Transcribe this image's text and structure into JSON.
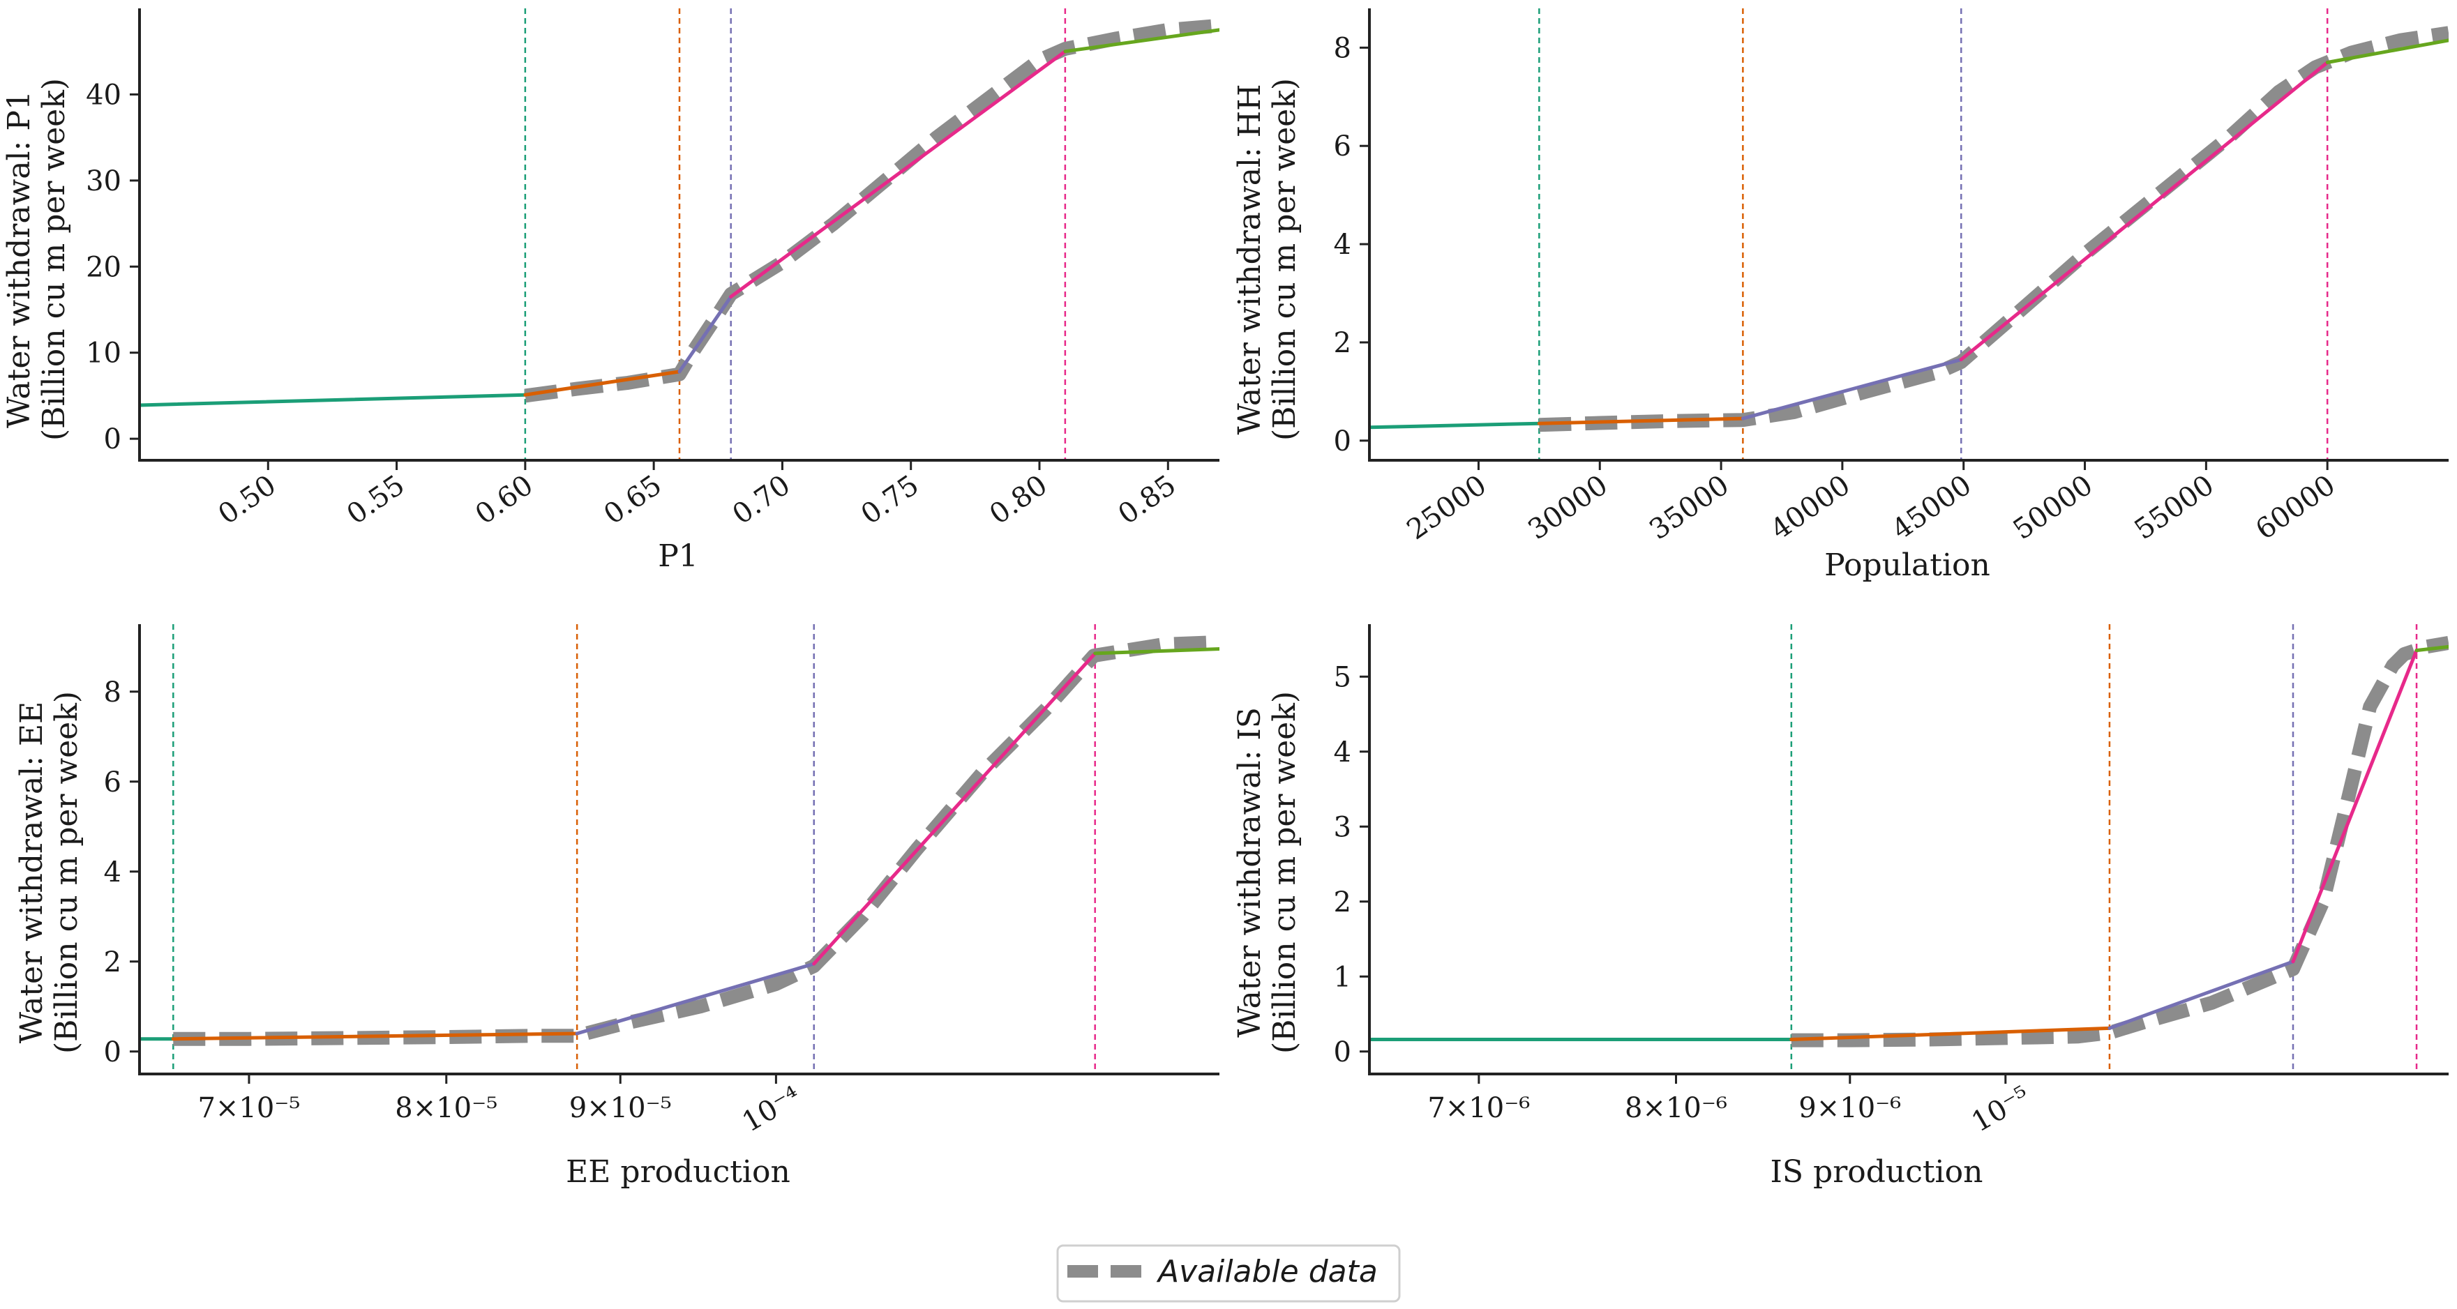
{
  "legend": {
    "label": "Available data",
    "placement": "bottom-center"
  },
  "colors": {
    "segment_1": "#1b9e77",
    "segment_2": "#d95f02",
    "segment_3": "#7570b3",
    "segment_4": "#e7298a",
    "segment_5": "#66a61e",
    "available_data": "#8c8c8c"
  },
  "chart_data": [
    {
      "id": "p1",
      "type": "line",
      "xscale": "linear",
      "xlabel": "P1",
      "ylabel_lines": [
        "Water withdrawal: P1",
        "(Billion cu m per week)"
      ],
      "xlim": [
        0.45,
        0.87
      ],
      "ylim": [
        -2.5,
        50
      ],
      "xticks": [
        0.5,
        0.55,
        0.6,
        0.65,
        0.7,
        0.75,
        0.8,
        0.85
      ],
      "xtick_labels": [
        "0.50",
        "0.55",
        "0.60",
        "0.65",
        "0.70",
        "0.75",
        "0.80",
        "0.85"
      ],
      "yticks": [
        0,
        10,
        20,
        30,
        40
      ],
      "ytick_labels": [
        "0",
        "10",
        "20",
        "30",
        "40"
      ],
      "rotate_xticks": true,
      "thresholds": [
        0.6,
        0.66,
        0.68,
        0.81
      ],
      "segments": [
        {
          "x": [
            0.45,
            0.6
          ],
          "y": [
            3.9,
            5.1
          ]
        },
        {
          "x": [
            0.6,
            0.66
          ],
          "y": [
            5.1,
            7.8
          ]
        },
        {
          "x": [
            0.66,
            0.68
          ],
          "y": [
            7.8,
            16.5
          ]
        },
        {
          "x": [
            0.68,
            0.81
          ],
          "y": [
            16.5,
            45.0
          ]
        },
        {
          "x": [
            0.81,
            0.87
          ],
          "y": [
            45.0,
            47.5
          ]
        }
      ],
      "available_data": {
        "x": [
          0.6,
          0.62,
          0.64,
          0.66,
          0.665,
          0.675,
          0.68,
          0.7,
          0.72,
          0.74,
          0.76,
          0.78,
          0.8,
          0.81,
          0.83,
          0.85,
          0.87
        ],
        "y": [
          5.0,
          5.8,
          6.5,
          7.5,
          10.0,
          14.5,
          16.8,
          20.5,
          25.0,
          30.0,
          35.0,
          39.5,
          44.0,
          45.3,
          46.5,
          47.5,
          48.0
        ]
      }
    },
    {
      "id": "hh",
      "type": "line",
      "xscale": "linear",
      "xlabel": "Population",
      "ylabel_lines": [
        "Water withdrawal: HH",
        "(Billion cu m per week)"
      ],
      "xlim": [
        20500,
        65000
      ],
      "ylim": [
        -0.4,
        8.8
      ],
      "xticks": [
        25000,
        30000,
        35000,
        40000,
        45000,
        50000,
        55000,
        60000
      ],
      "xtick_labels": [
        "25000",
        "30000",
        "35000",
        "40000",
        "45000",
        "50000",
        "55000",
        "60000"
      ],
      "yticks": [
        0,
        2,
        4,
        6,
        8
      ],
      "ytick_labels": [
        "0",
        "2",
        "4",
        "6",
        "8"
      ],
      "rotate_xticks": true,
      "thresholds": [
        27500,
        35900,
        44900,
        60000
      ],
      "segments": [
        {
          "x": [
            20500,
            27500
          ],
          "y": [
            0.27,
            0.35
          ]
        },
        {
          "x": [
            27500,
            35900
          ],
          "y": [
            0.35,
            0.45
          ]
        },
        {
          "x": [
            35900,
            44900
          ],
          "y": [
            0.45,
            1.65
          ]
        },
        {
          "x": [
            44900,
            60000
          ],
          "y": [
            1.65,
            7.7
          ]
        },
        {
          "x": [
            60000,
            65000
          ],
          "y": [
            7.7,
            8.15
          ]
        }
      ],
      "available_data": {
        "x": [
          27500,
          30000,
          33000,
          35900,
          38000,
          41000,
          44000,
          44900,
          47000,
          50000,
          53000,
          56000,
          58000,
          59500,
          61000,
          63000,
          65000
        ],
        "y": [
          0.32,
          0.36,
          0.4,
          0.42,
          0.58,
          1.0,
          1.4,
          1.6,
          2.5,
          3.8,
          5.0,
          6.2,
          7.1,
          7.6,
          7.9,
          8.15,
          8.3
        ]
      }
    },
    {
      "id": "ee",
      "type": "line",
      "xscale": "log",
      "xlabel": "EE production",
      "ylabel_lines": [
        "Water withdrawal: EE",
        "(Billion cu m per week)"
      ],
      "xlim": [
        6.5e-05,
        0.000135
      ],
      "ylim": [
        -0.5,
        9.5
      ],
      "xticks": [
        7e-05,
        8e-05,
        9e-05,
        0.0001
      ],
      "xtick_labels": [
        "7×10⁻⁵",
        "8×10⁻⁵",
        "9×10⁻⁵",
        "10⁻⁴"
      ],
      "yticks": [
        0,
        2,
        4,
        6,
        8
      ],
      "ytick_labels": [
        "0",
        "2",
        "4",
        "6",
        "8"
      ],
      "rotate_xticks": false,
      "thresholds": [
        6.65e-05,
        8.74e-05,
        0.0001026,
        0.0001241
      ],
      "segments": [
        {
          "x": [
            6.5e-05,
            6.65e-05
          ],
          "y": [
            0.28,
            0.28
          ]
        },
        {
          "x": [
            6.65e-05,
            8.74e-05
          ],
          "y": [
            0.28,
            0.4
          ]
        },
        {
          "x": [
            8.74e-05,
            0.0001026
          ],
          "y": [
            0.4,
            1.95
          ]
        },
        {
          "x": [
            0.0001026,
            0.0001241
          ],
          "y": [
            1.95,
            8.85
          ]
        },
        {
          "x": [
            0.0001241,
            0.000135
          ],
          "y": [
            8.85,
            8.95
          ]
        }
      ],
      "available_data": {
        "x": [
          6.65e-05,
          7e-05,
          7.5e-05,
          8e-05,
          8.5e-05,
          8.74e-05,
          9e-05,
          9.5e-05,
          0.0001,
          0.0001026,
          0.000106,
          0.00011,
          0.000115,
          0.00012,
          0.000124,
          0.00013,
          0.000135
        ],
        "y": [
          0.28,
          0.28,
          0.3,
          0.32,
          0.35,
          0.35,
          0.6,
          1.0,
          1.5,
          1.9,
          3.0,
          4.5,
          6.2,
          7.6,
          8.8,
          9.05,
          9.1
        ]
      }
    },
    {
      "id": "is",
      "type": "line",
      "xscale": "log",
      "xlabel": "IS production",
      "ylabel_lines": [
        "Water withdrawal: IS",
        "(Billion cu m per week)"
      ],
      "xlim": [
        6.5e-06,
        1.35e-05
      ],
      "ylim": [
        -0.3,
        5.7
      ],
      "xticks": [
        7e-06,
        8e-06,
        9e-06,
        1e-05
      ],
      "xtick_labels": [
        "7×10⁻⁶",
        "8×10⁻⁶",
        "9×10⁻⁶",
        "10⁻⁵"
      ],
      "yticks": [
        0,
        1,
        2,
        3,
        4,
        5
      ],
      "ytick_labels": [
        "0",
        "1",
        "2",
        "3",
        "4",
        "5"
      ],
      "rotate_xticks": false,
      "thresholds": [
        8.65e-06,
        1.073e-05,
        1.215e-05,
        1.321e-05
      ],
      "segments": [
        {
          "x": [
            6.5e-06,
            8.65e-06
          ],
          "y": [
            0.16,
            0.16
          ]
        },
        {
          "x": [
            8.65e-06,
            1.073e-05
          ],
          "y": [
            0.16,
            0.31
          ]
        },
        {
          "x": [
            1.073e-05,
            1.215e-05
          ],
          "y": [
            0.31,
            1.2
          ]
        },
        {
          "x": [
            1.215e-05,
            1.321e-05
          ],
          "y": [
            1.2,
            5.35
          ]
        },
        {
          "x": [
            1.321e-05,
            1.35e-05
          ],
          "y": [
            5.35,
            5.4
          ]
        }
      ],
      "available_data": {
        "x": [
          8.65e-06,
          9e-06,
          9.5e-06,
          1e-05,
          1.05e-05,
          1.073e-05,
          1.1e-05,
          1.15e-05,
          1.2e-05,
          1.215e-05,
          1.24e-05,
          1.26e-05,
          1.28e-05,
          1.3e-05,
          1.31e-05,
          1.33e-05,
          1.35e-05
        ],
        "y": [
          0.15,
          0.15,
          0.16,
          0.18,
          0.2,
          0.25,
          0.4,
          0.65,
          1.0,
          1.1,
          2.0,
          3.3,
          4.6,
          5.15,
          5.3,
          5.4,
          5.45
        ]
      }
    }
  ]
}
